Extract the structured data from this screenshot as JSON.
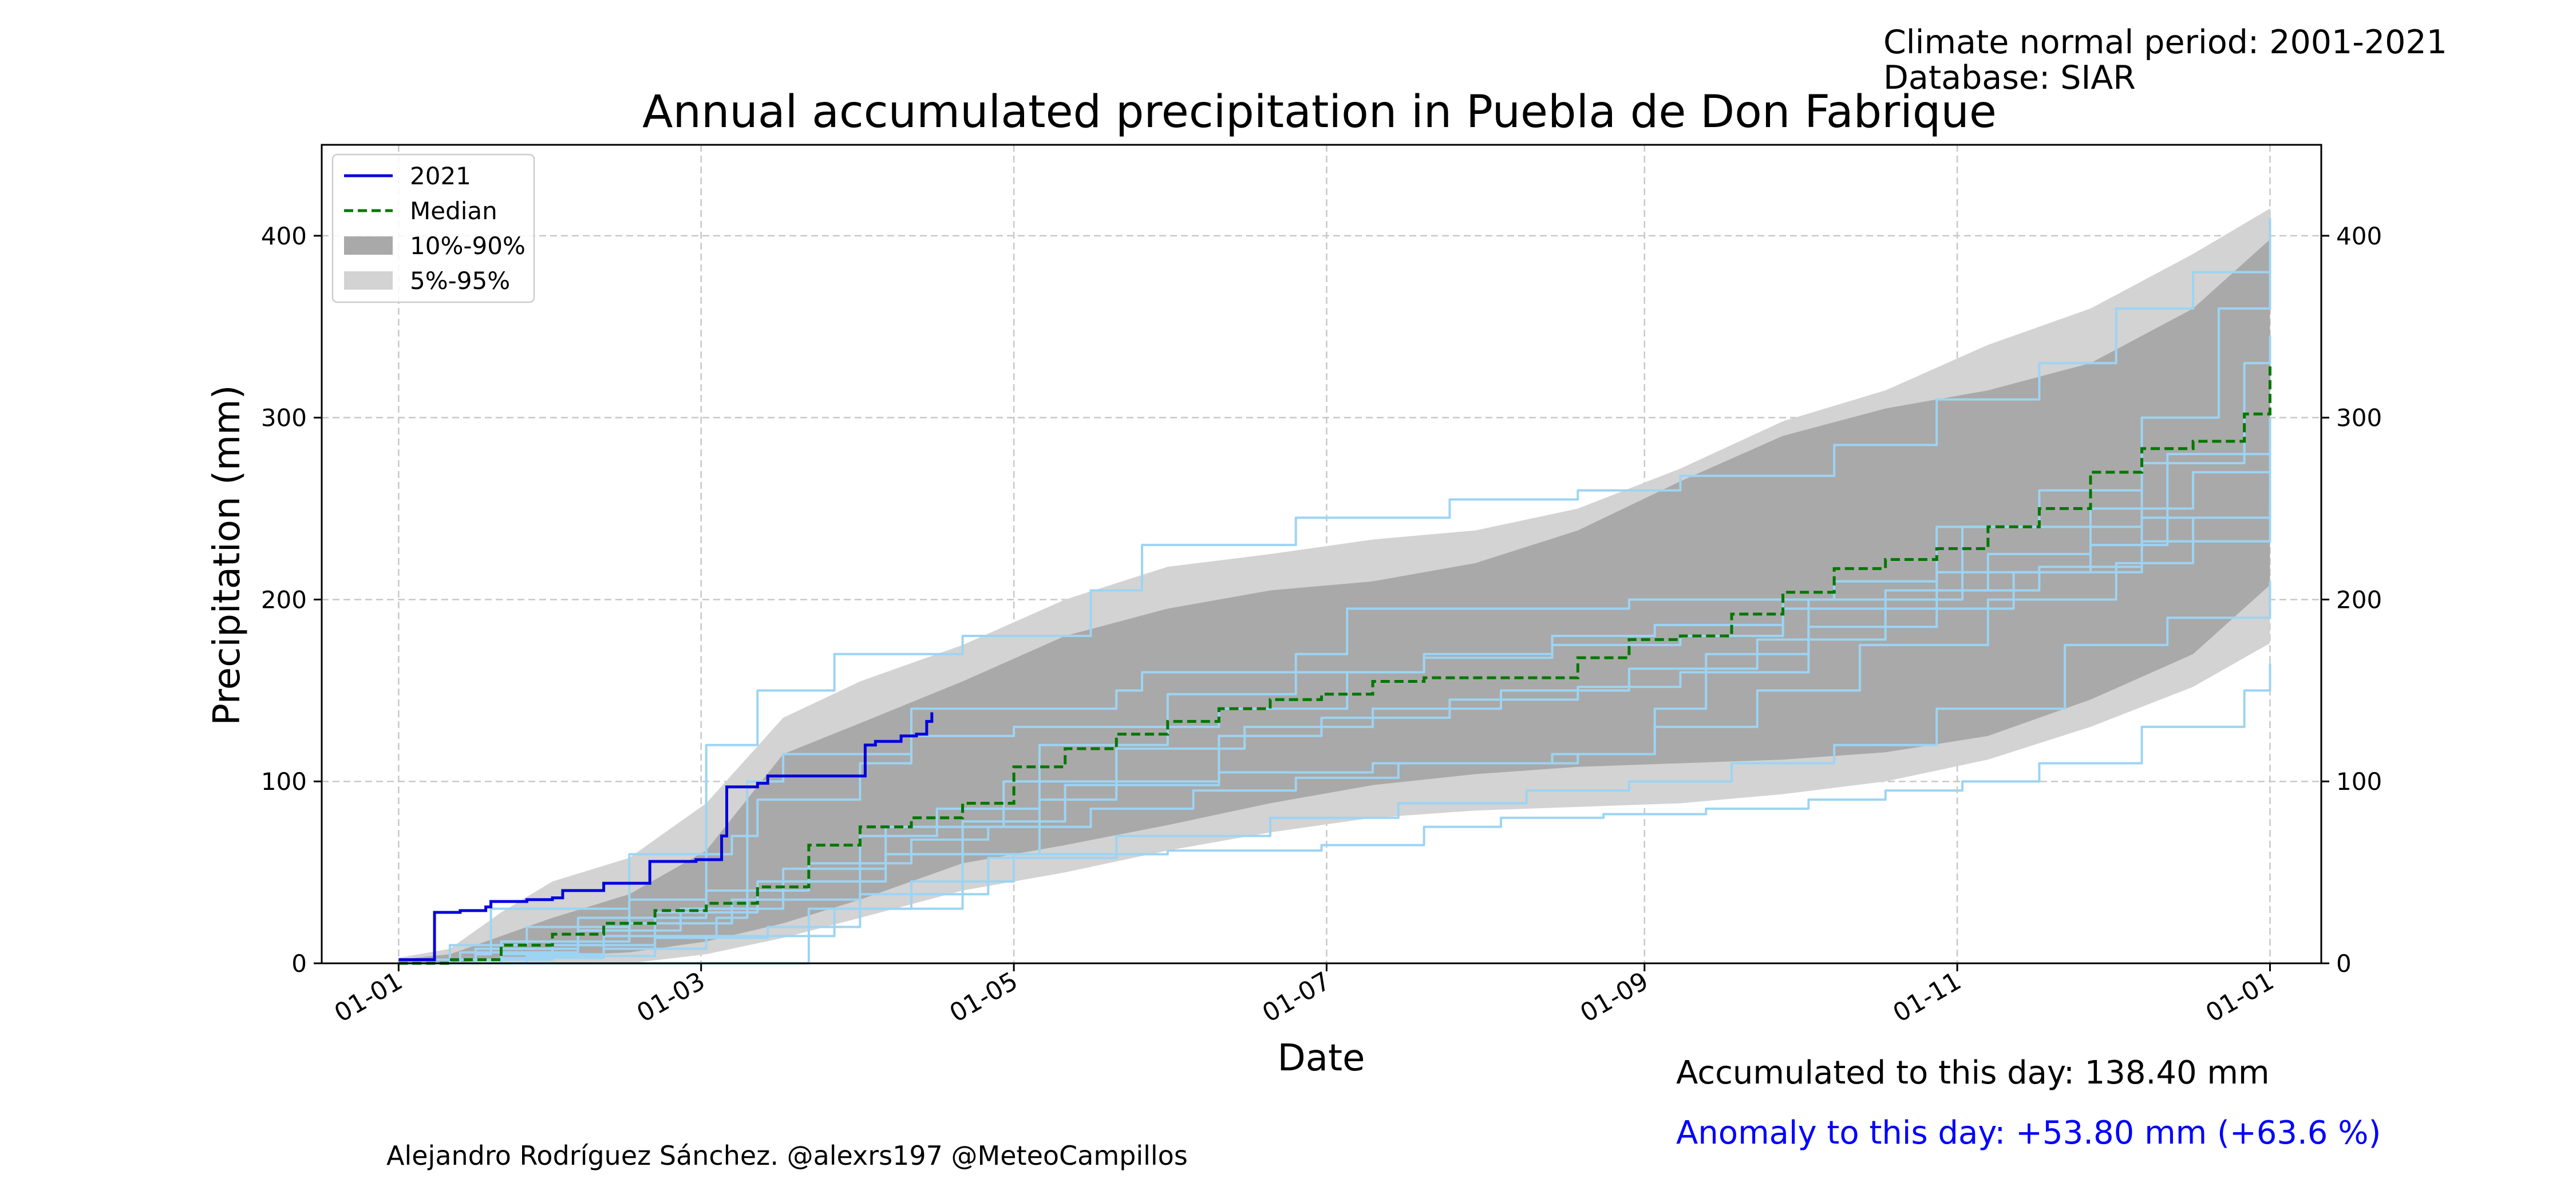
{
  "header": {
    "climate_period": "Climate normal period: 2001-2021",
    "database": "Database: SIAR"
  },
  "footer": {
    "author": "Alejandro Rodríguez Sánchez. @alexrs197 @MeteoCampillos",
    "accumulated": "Accumulated to this day: 138.40 mm",
    "anomaly": "Anomaly to this day: +53.80 mm (+63.6 %)"
  },
  "colors": {
    "current_year": "#0000dd",
    "median": "#007700",
    "band_10_90": "#a9a9a9",
    "band_5_95": "#d3d3d3",
    "past_years": "#9dd4f3",
    "anomaly_text": "#0000ff"
  },
  "chart_data": {
    "type": "line",
    "title": "Annual accumulated precipitation in Puebla de Don Fabrique",
    "xlabel": "Date",
    "ylabel": "Precipitation (mm)",
    "x_unit": "day-of-year",
    "xlim": [
      -15,
      375
    ],
    "ylim": [
      0,
      450
    ],
    "x_ticks": [
      {
        "label": "01-01",
        "x": 0
      },
      {
        "label": "01-03",
        "x": 59
      },
      {
        "label": "01-05",
        "x": 120
      },
      {
        "label": "01-07",
        "x": 181
      },
      {
        "label": "01-09",
        "x": 243
      },
      {
        "label": "01-11",
        "x": 304
      },
      {
        "label": "01-01",
        "x": 365
      }
    ],
    "y_ticks": [
      0,
      100,
      200,
      300,
      400
    ],
    "grid": true,
    "legend_position": "top-left",
    "legend": [
      "2021",
      "Median",
      "10%-90%",
      "5%-95%"
    ],
    "series": [
      {
        "name": "2021",
        "style": "solid",
        "x": [
          0,
          4,
          7,
          12,
          17,
          18,
          25,
          30,
          32,
          40,
          45,
          49,
          58,
          62,
          63,
          64,
          70,
          72,
          80,
          82,
          91,
          93,
          98,
          101,
          103,
          104
        ],
        "y": [
          2,
          2,
          28,
          29,
          31,
          34,
          35,
          36,
          40,
          44,
          44,
          56,
          57,
          57,
          70,
          97,
          99,
          103,
          103,
          103,
          120,
          122,
          125,
          126,
          133,
          138
        ]
      },
      {
        "name": "Median",
        "style": "dashed",
        "x": [
          0,
          10,
          20,
          30,
          40,
          50,
          60,
          70,
          80,
          90,
          100,
          110,
          120,
          130,
          140,
          150,
          160,
          170,
          180,
          190,
          200,
          210,
          220,
          230,
          240,
          250,
          260,
          270,
          280,
          290,
          300,
          310,
          320,
          330,
          340,
          350,
          360,
          365
        ],
        "y": [
          0,
          2,
          10,
          16,
          22,
          29,
          33,
          42,
          65,
          75,
          80,
          88,
          108,
          118,
          126,
          133,
          140,
          145,
          148,
          155,
          157,
          157,
          157,
          168,
          178,
          180,
          192,
          204,
          217,
          222,
          228,
          240,
          250,
          270,
          283,
          287,
          302,
          330
        ]
      }
    ],
    "bands": [
      {
        "name": "5%-95%",
        "x": [
          0,
          10,
          20,
          30,
          45,
          60,
          75,
          90,
          110,
          130,
          150,
          170,
          190,
          210,
          230,
          250,
          270,
          290,
          310,
          330,
          350,
          365
        ],
        "lower": [
          0,
          0,
          0,
          0,
          0,
          5,
          14,
          25,
          40,
          50,
          62,
          72,
          80,
          84,
          86,
          88,
          93,
          100,
          112,
          130,
          152,
          176
        ],
        "upper": [
          3,
          8,
          28,
          45,
          58,
          88,
          135,
          155,
          175,
          200,
          218,
          225,
          233,
          238,
          250,
          272,
          298,
          315,
          340,
          360,
          390,
          415
        ]
      },
      {
        "name": "10%-90%",
        "x": [
          0,
          10,
          20,
          30,
          45,
          60,
          75,
          90,
          110,
          130,
          150,
          170,
          190,
          210,
          230,
          250,
          270,
          290,
          310,
          330,
          350,
          365
        ],
        "lower": [
          0,
          0,
          2,
          4,
          6,
          12,
          22,
          35,
          55,
          65,
          76,
          88,
          98,
          104,
          108,
          110,
          112,
          116,
          125,
          145,
          170,
          208
        ],
        "upper": [
          2,
          5,
          15,
          25,
          38,
          62,
          115,
          132,
          155,
          180,
          195,
          205,
          210,
          220,
          238,
          265,
          290,
          305,
          315,
          330,
          360,
          398
        ]
      }
    ],
    "past_years": [
      {
        "x": [
          0,
          15,
          18,
          45,
          60,
          65,
          70,
          90,
          100,
          140,
          145,
          175,
          185,
          240,
          280,
          300,
          320,
          340,
          355,
          365
        ],
        "y": [
          0,
          5,
          30,
          35,
          60,
          70,
          90,
          110,
          140,
          150,
          160,
          170,
          195,
          200,
          210,
          240,
          260,
          300,
          360,
          410
        ]
      },
      {
        "x": [
          0,
          10,
          25,
          45,
          60,
          70,
          85,
          110,
          135,
          145,
          175,
          205,
          230,
          250,
          280,
          300,
          320,
          335,
          350,
          365
        ],
        "y": [
          2,
          10,
          20,
          60,
          120,
          150,
          170,
          180,
          205,
          230,
          245,
          255,
          260,
          268,
          285,
          310,
          330,
          360,
          380,
          395
        ]
      },
      {
        "x": [
          0,
          20,
          40,
          62,
          68,
          75,
          100,
          120,
          160,
          185,
          200,
          225,
          250,
          270,
          300,
          330,
          345,
          365
        ],
        "y": [
          0,
          5,
          15,
          25,
          100,
          115,
          125,
          130,
          140,
          160,
          170,
          175,
          180,
          200,
          215,
          230,
          280,
          300
        ]
      },
      {
        "x": [
          0,
          20,
          40,
          60,
          85,
          110,
          125,
          140,
          160,
          190,
          230,
          245,
          255,
          275,
          305,
          340,
          360,
          365
        ],
        "y": [
          0,
          3,
          8,
          15,
          30,
          60,
          90,
          100,
          105,
          110,
          115,
          140,
          170,
          200,
          240,
          275,
          330,
          345
        ]
      },
      {
        "x": [
          0,
          30,
          60,
          78,
          80,
          100,
          120,
          150,
          180,
          200,
          215,
          235,
          255,
          275,
          290,
          305,
          320,
          340,
          360,
          365
        ],
        "y": [
          0,
          0,
          0,
          0,
          30,
          45,
          60,
          62,
          65,
          75,
          80,
          82,
          85,
          90,
          95,
          100,
          110,
          130,
          150,
          165
        ]
      },
      {
        "x": [
          0,
          15,
          35,
          60,
          80,
          100,
          115,
          135,
          155,
          175,
          195,
          225,
          245,
          265,
          285,
          310,
          335,
          350,
          365
        ],
        "y": [
          0,
          8,
          25,
          40,
          55,
          68,
          75,
          85,
          95,
          102,
          110,
          115,
          130,
          150,
          175,
          200,
          220,
          245,
          260
        ]
      },
      {
        "x": [
          0,
          20,
          45,
          65,
          90,
          105,
          125,
          150,
          175,
          200,
          225,
          245,
          270,
          290,
          310,
          330,
          350,
          365
        ],
        "y": [
          0,
          12,
          22,
          35,
          70,
          85,
          120,
          148,
          160,
          168,
          180,
          186,
          195,
          205,
          225,
          250,
          270,
          285
        ]
      },
      {
        "x": [
          0,
          10,
          30,
          50,
          70,
          95,
          110,
          130,
          160,
          180,
          205,
          230,
          250,
          275,
          300,
          320,
          340,
          365
        ],
        "y": [
          0,
          2,
          10,
          28,
          45,
          60,
          78,
          98,
          125,
          135,
          145,
          152,
          160,
          185,
          205,
          218,
          232,
          250
        ]
      },
      {
        "x": [
          0,
          25,
          50,
          72,
          90,
          115,
          140,
          170,
          195,
          220,
          240,
          260,
          280,
          300,
          325,
          345,
          365
        ],
        "y": [
          0,
          4,
          14,
          20,
          38,
          58,
          70,
          80,
          88,
          95,
          100,
          110,
          120,
          140,
          175,
          190,
          210
        ]
      },
      {
        "x": [
          0,
          12,
          35,
          55,
          75,
          95,
          118,
          140,
          165,
          190,
          215,
          240,
          265,
          290,
          315,
          340,
          365
        ],
        "y": [
          0,
          6,
          18,
          30,
          52,
          75,
          100,
          118,
          130,
          140,
          150,
          162,
          178,
          195,
          215,
          245,
          300
        ]
      }
    ]
  }
}
